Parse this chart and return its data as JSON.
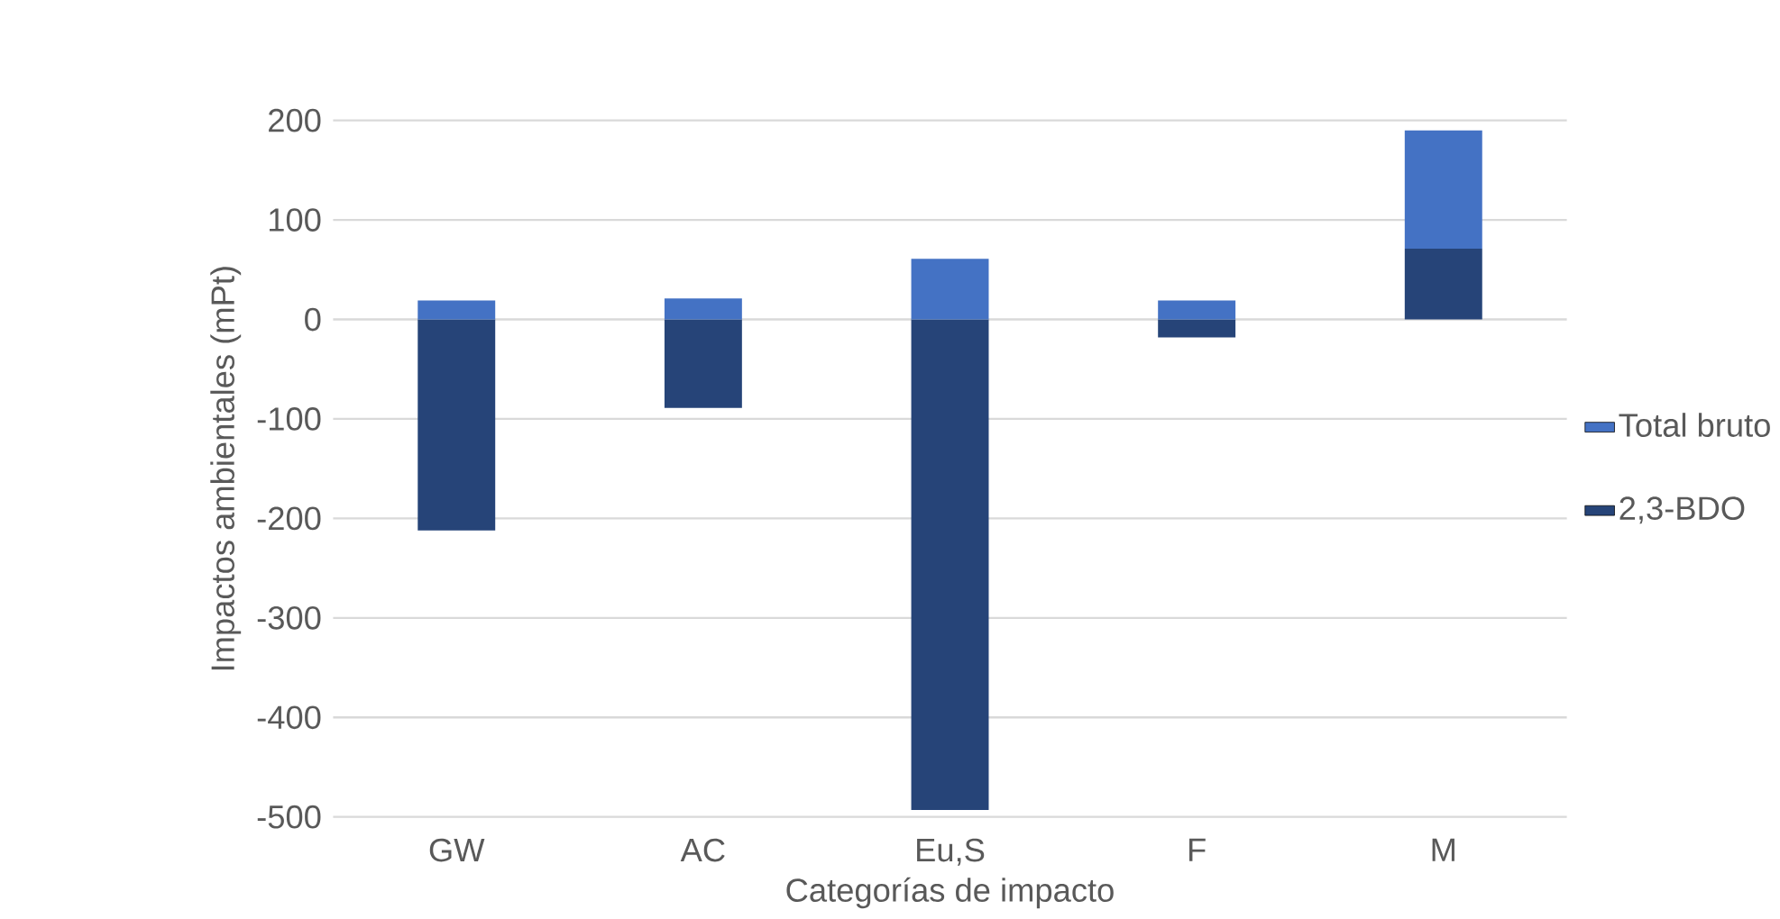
{
  "chart_data": {
    "type": "bar",
    "stacked": true,
    "xlabel": "Categorías de impacto",
    "ylabel": "Impactos ambientales (mPt)",
    "categories": [
      "GW",
      "AC",
      "Eu,S",
      "F",
      "M"
    ],
    "series": [
      {
        "name": "2,3-BDO",
        "color": "#264478",
        "values": [
          -212,
          -89,
          -493,
          -18,
          71
        ]
      },
      {
        "name": "Total bruto",
        "color": "#4472c4",
        "values": [
          19,
          21,
          61,
          19,
          119
        ]
      }
    ],
    "ylim": [
      -500,
      200
    ],
    "yticks": [
      -500,
      -400,
      -300,
      -200,
      -100,
      0,
      100,
      200
    ],
    "grid": "y",
    "legend": "right"
  }
}
